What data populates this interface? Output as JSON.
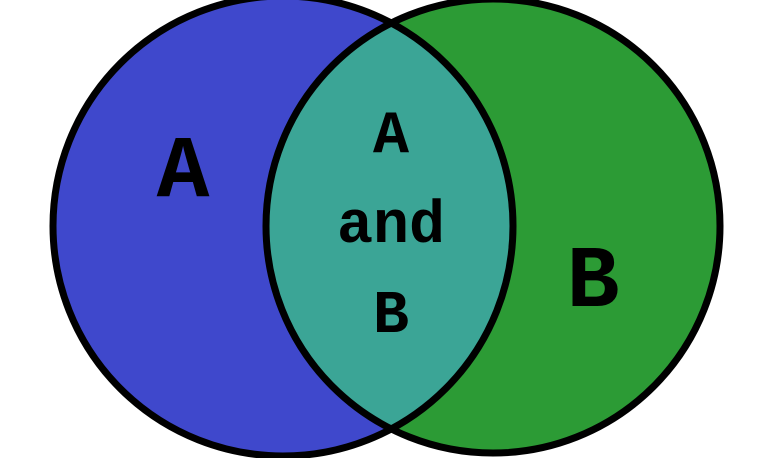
{
  "diagram": {
    "type": "venn",
    "sets": [
      {
        "id": "A",
        "label": "A",
        "color": "#3f48cc"
      },
      {
        "id": "B",
        "label": "B",
        "color": "#2c9b35"
      }
    ],
    "intersection": {
      "label_lines": [
        "A",
        "and",
        "B"
      ],
      "color": "#3ba596"
    },
    "outline_color": "#000000",
    "background_color": "#ffffff"
  }
}
